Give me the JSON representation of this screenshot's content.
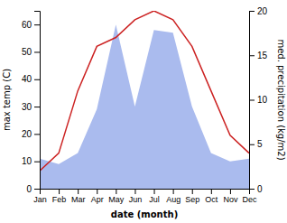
{
  "chart_data": {
    "type": "area",
    "categories": [
      "Jan",
      "Feb",
      "Mar",
      "Apr",
      "May",
      "Jun",
      "Jul",
      "Aug",
      "Sep",
      "Oct",
      "Nov",
      "Dec"
    ],
    "xlabel": "date (month)",
    "ylabel": "max temp (C)",
    "y2label": "med. precipitation (kg/m2)",
    "series": [
      {
        "type": "area",
        "color": "#aabbee",
        "values": [
          11,
          9,
          13,
          29,
          60,
          30,
          58,
          57,
          30,
          13,
          10,
          11
        ]
      },
      {
        "type": "line",
        "color": "#cc2222",
        "axis": "y2",
        "values": [
          2,
          4,
          11,
          16,
          17,
          19,
          20,
          19,
          16,
          11,
          6,
          4
        ]
      }
    ],
    "ylim": [
      0,
      65
    ],
    "yticks": [
      0,
      10,
      20,
      30,
      40,
      50,
      60
    ],
    "y2lim": [
      0,
      20
    ],
    "y2ticks": [
      0,
      5,
      10,
      15,
      20
    ],
    "grid": false
  }
}
